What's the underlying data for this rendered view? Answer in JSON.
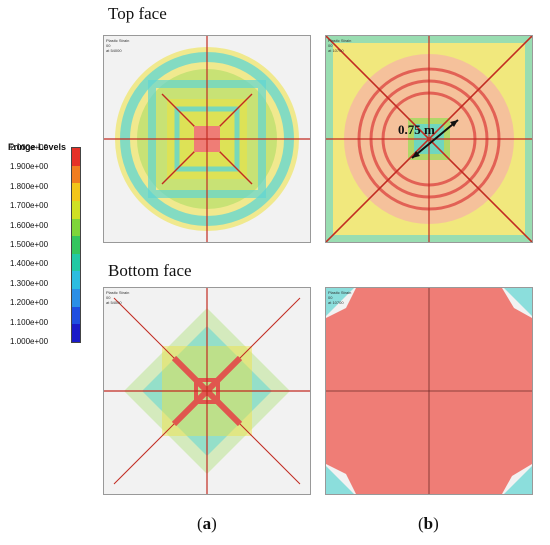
{
  "headings": {
    "top": "Top face",
    "bottom": "Bottom face"
  },
  "legend": {
    "title": "Fringe Levels",
    "ticks": [
      "2.000e+00",
      "1.900e+00",
      "1.800e+00",
      "1.700e+00",
      "1.600e+00",
      "1.500e+00",
      "1.400e+00",
      "1.300e+00",
      "1.200e+00",
      "1.100e+00",
      "1.000e+00"
    ],
    "colors": [
      "#e53127",
      "#f07d20",
      "#f2c51a",
      "#cfe024",
      "#7ed53a",
      "#34c55e",
      "#22c9a4",
      "#2dbde0",
      "#2b8fe6",
      "#1f4ee0",
      "#1a1ac8"
    ]
  },
  "panel_header": {
    "line1": "Plastic Strain",
    "line2": "00",
    "line3_a": "at 54000",
    "line3_b": "at 10700"
  },
  "annotation": {
    "diameter": "0.75 m"
  },
  "captions": {
    "a_open": "(",
    "a_letter": "a",
    "a_close": ")",
    "b_open": "(",
    "b_letter": "b",
    "b_close": ")"
  },
  "colors": {
    "base": "#f2f2f2",
    "red": "#ef7d76",
    "yellow": "#efe23d",
    "green": "#9fdc5b",
    "cyan": "#5fd6d3",
    "line": "#c22b22"
  }
}
